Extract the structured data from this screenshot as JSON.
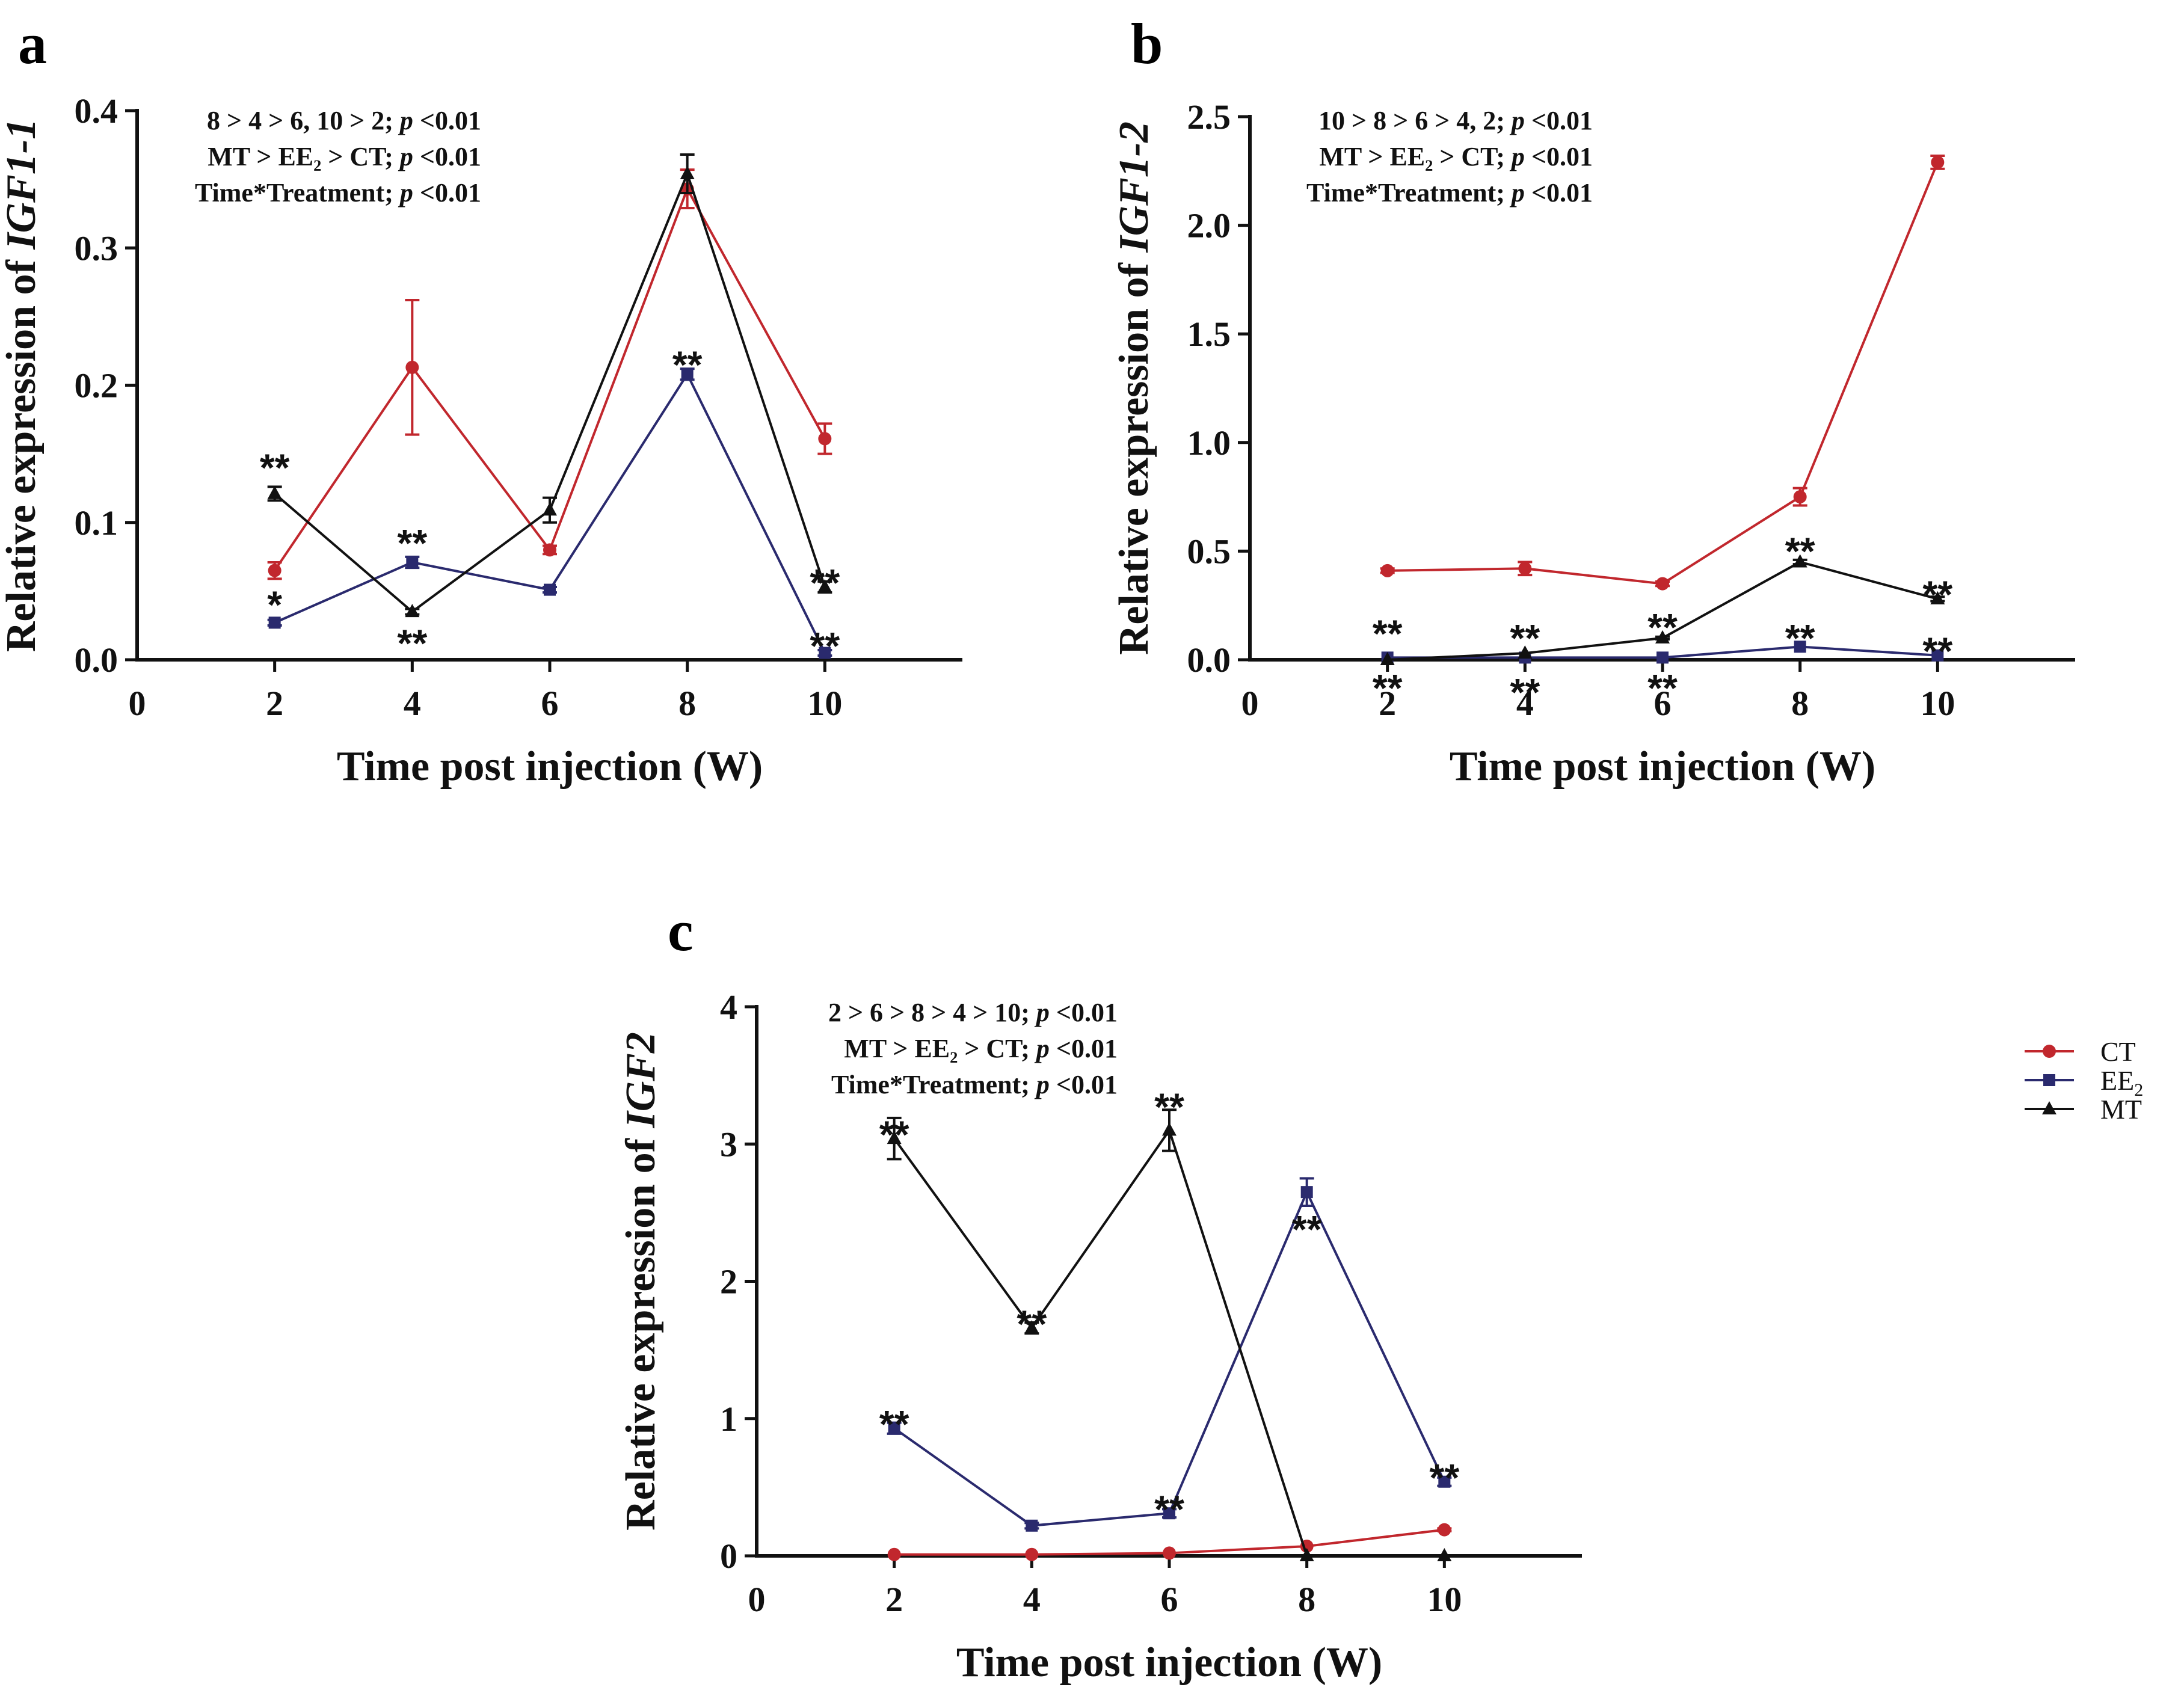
{
  "chart_data": [
    {
      "id": "a",
      "type": "line",
      "panel_label": "a",
      "title": "",
      "xlabel": "Time post injection (W)",
      "ylabel_prefix": "Relative expression of ",
      "ylabel_gene": "IGF1-1",
      "xlim": [
        0,
        12
      ],
      "ylim": [
        0,
        0.4
      ],
      "xticks": [
        0,
        2,
        4,
        6,
        8,
        10
      ],
      "yticks": [
        0.0,
        0.1,
        0.2,
        0.3,
        0.4
      ],
      "ytick_labels": [
        "0.0",
        "0.1",
        "0.2",
        "0.3",
        "0.4"
      ],
      "stats": [
        {
          "a": "8 > 4 > 6, 10 > 2; ",
          "b": "p",
          "c": " <0.01"
        },
        {
          "a": "MT > EE₂ > CT; ",
          "b": "p",
          "c": " <0.01"
        },
        {
          "a": "Time*Treatment; ",
          "b": "p",
          "c": " <0.01"
        }
      ],
      "x": [
        2,
        4,
        6,
        8,
        10
      ],
      "series": [
        {
          "name": "CT",
          "values": [
            0.065,
            0.213,
            0.08,
            0.343,
            0.161
          ],
          "errors": [
            0.006,
            0.049,
            0.003,
            0.014,
            0.011
          ]
        },
        {
          "name": "EE2",
          "values": [
            0.027,
            0.071,
            0.051,
            0.208,
            0.005
          ],
          "errors": [
            0.002,
            0.004,
            0.002,
            0.004,
            0.002
          ]
        },
        {
          "name": "MT",
          "values": [
            0.121,
            0.035,
            0.109,
            0.354,
            0.053
          ],
          "errors": [
            0.005,
            0.002,
            0.009,
            0.014,
            0.004
          ]
        }
      ],
      "annotations": [
        {
          "text": "**",
          "x": 2,
          "y": 0.14
        },
        {
          "text": "*",
          "x": 2,
          "y": 0.04
        },
        {
          "text": "**",
          "x": 4,
          "y": 0.085
        },
        {
          "text": "**",
          "x": 4,
          "y": 0.012
        },
        {
          "text": "**",
          "x": 8,
          "y": 0.215
        },
        {
          "text": "**",
          "x": 10,
          "y": 0.056
        },
        {
          "text": "**",
          "x": 10,
          "y": 0.01
        }
      ]
    },
    {
      "id": "b",
      "type": "line",
      "panel_label": "b",
      "title": "",
      "xlabel": "Time post injection (W)",
      "ylabel_prefix": "Relative expression of ",
      "ylabel_gene": "IGF1-2",
      "xlim": [
        0,
        12
      ],
      "ylim": [
        0,
        2.5
      ],
      "xticks": [
        0,
        2,
        4,
        6,
        8,
        10
      ],
      "yticks": [
        0.0,
        0.5,
        1.0,
        1.5,
        2.0,
        2.5
      ],
      "ytick_labels": [
        "0.0",
        "0.5",
        "1.0",
        "1.5",
        "2.0",
        "2.5"
      ],
      "stats": [
        {
          "a": "10 > 8 > 6 > 4, 2; ",
          "b": "p",
          "c": " <0.01"
        },
        {
          "a": "MT > EE₂ > CT; ",
          "b": "p",
          "c": " <0.01"
        },
        {
          "a": "Time*Treatment; ",
          "b": "p",
          "c": " <0.01"
        }
      ],
      "x": [
        2,
        4,
        6,
        8,
        10
      ],
      "series": [
        {
          "name": "CT",
          "values": [
            0.41,
            0.42,
            0.35,
            0.75,
            2.29
          ],
          "errors": [
            0.01,
            0.03,
            0.01,
            0.04,
            0.03
          ]
        },
        {
          "name": "EE2",
          "values": [
            0.01,
            0.01,
            0.01,
            0.06,
            0.02
          ],
          "errors": [
            0.003,
            0.003,
            0.003,
            0.004,
            0.003
          ]
        },
        {
          "name": "MT",
          "values": [
            0.0,
            0.03,
            0.1,
            0.45,
            0.28
          ],
          "errors": [
            0.003,
            0.003,
            0.006,
            0.01,
            0.01
          ]
        }
      ],
      "annotations": [
        {
          "text": "**",
          "x": 2,
          "y": 0.12
        },
        {
          "text": "**",
          "x": 2,
          "y": -0.13
        },
        {
          "text": "**",
          "x": 4,
          "y": 0.1
        },
        {
          "text": "**",
          "x": 4,
          "y": -0.15
        },
        {
          "text": "**",
          "x": 6,
          "y": 0.15
        },
        {
          "text": "**",
          "x": 6,
          "y": -0.13
        },
        {
          "text": "**",
          "x": 8,
          "y": 0.5
        },
        {
          "text": "**",
          "x": 8,
          "y": 0.1
        },
        {
          "text": "**",
          "x": 10,
          "y": 0.3
        },
        {
          "text": "**",
          "x": 10,
          "y": 0.04
        }
      ]
    },
    {
      "id": "c",
      "type": "line",
      "panel_label": "c",
      "title": "",
      "xlabel": "Time post injection (W)",
      "ylabel_prefix": "Relative expression of ",
      "ylabel_gene": "IGF2",
      "xlim": [
        0,
        12
      ],
      "ylim": [
        0,
        4
      ],
      "xticks": [
        0,
        2,
        4,
        6,
        8,
        10
      ],
      "yticks": [
        0,
        1,
        2,
        3,
        4
      ],
      "ytick_labels": [
        "0",
        "1",
        "2",
        "3",
        "4"
      ],
      "stats": [
        {
          "a": "2 > 6 > 8 > 4 > 10; ",
          "b": "p",
          "c": " <0.01"
        },
        {
          "a": "MT > EE₂ > CT; ",
          "b": "p",
          "c": " <0.01"
        },
        {
          "a": "Time*Treatment; ",
          "b": "p",
          "c": " <0.01"
        }
      ],
      "x": [
        2,
        4,
        6,
        8,
        10
      ],
      "series": [
        {
          "name": "CT",
          "values": [
            0.01,
            0.01,
            0.02,
            0.07,
            0.19
          ],
          "errors": [
            0.003,
            0.003,
            0.003,
            0.005,
            0.01
          ]
        },
        {
          "name": "EE2",
          "values": [
            0.93,
            0.22,
            0.31,
            2.65,
            0.54
          ],
          "errors": [
            0.04,
            0.02,
            0.03,
            0.1,
            0.03
          ]
        },
        {
          "name": "MT",
          "values": [
            3.04,
            1.66,
            3.1,
            0.0,
            0.0
          ],
          "errors": [
            0.15,
            0.04,
            0.15,
            0.005,
            0.005
          ]
        }
      ],
      "annotations": [
        {
          "text": "**",
          "x": 2,
          "y": 3.07
        },
        {
          "text": "**",
          "x": 2,
          "y": 0.96
        },
        {
          "text": "**",
          "x": 4,
          "y": 1.69
        },
        {
          "text": "**",
          "x": 6,
          "y": 3.27
        },
        {
          "text": "**",
          "x": 6,
          "y": 0.34
        },
        {
          "text": "**",
          "x": 8,
          "y": 2.38
        },
        {
          "text": "**",
          "x": 10,
          "y": 0.57
        }
      ]
    }
  ],
  "legend": {
    "items": [
      {
        "name": "CT",
        "label": "CT",
        "color": "#c1272d",
        "marker": "circle"
      },
      {
        "name": "EE2",
        "label": "EE",
        "sub": "2",
        "color": "#2a2a6e",
        "marker": "square"
      },
      {
        "name": "MT",
        "label": "MT",
        "color": "#111111",
        "marker": "triangle"
      }
    ]
  },
  "colors": {
    "CT": "#c1272d",
    "EE2": "#2a2a6e",
    "MT": "#111111",
    "axis": "#111111"
  }
}
